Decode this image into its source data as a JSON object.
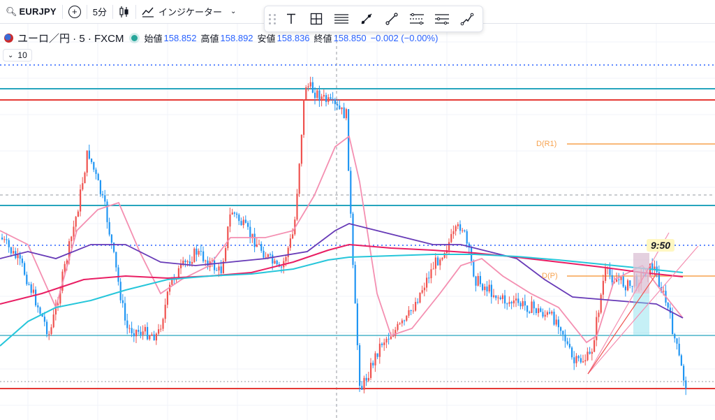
{
  "toolbar": {
    "symbol": "EURJPY",
    "add_label": "+",
    "interval": "5分",
    "indicators_label": "インジケーター",
    "clipped": "88"
  },
  "legend": {
    "title": "ユーロ／円 · 5 · FXCM",
    "open_label": "始値",
    "open": "158.852",
    "high_label": "高値",
    "high": "158.892",
    "low_label": "安値",
    "low": "158.836",
    "close_label": "終値",
    "close": "158.850",
    "change": "−0.002 (−0.00%)",
    "sub_count": "10"
  },
  "annotations": {
    "time_label": "9:50",
    "pivot_r1": "D(R1)",
    "pivot_p": "D(P)"
  },
  "colors": {
    "up": "#ef5350",
    "down": "#2196f3",
    "ma_pink": "#f48fb1",
    "ma_purple": "#673ab7",
    "ma_red": "#e91e63",
    "ma_cyan": "#26c6da",
    "hline_teal": "#26a5bd",
    "hline_red": "#e53935",
    "pivot": "#f7a24d"
  },
  "drawing_tools": [
    "text-tool-icon",
    "measure-tool-icon",
    "fib-tool-icon",
    "ray-tool-icon",
    "line-tool-icon",
    "parallel-channel-icon",
    "regression-icon",
    "path-tool-icon"
  ]
}
